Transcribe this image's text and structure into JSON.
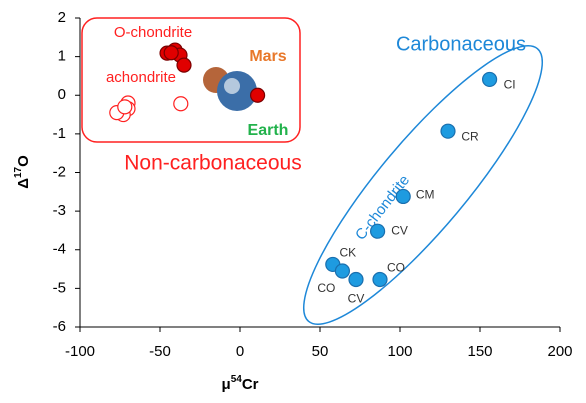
{
  "chart_data": {
    "type": "scatter",
    "xlabel": [
      "μ",
      "54",
      "Cr"
    ],
    "ylabel": [
      "Δ",
      "17",
      "O"
    ],
    "xlim": [
      -100,
      200
    ],
    "ylim": [
      -6,
      2
    ],
    "xticks": [
      -100,
      -50,
      0,
      50,
      100,
      150,
      200
    ],
    "yticks": [
      -6,
      -5,
      -4,
      -3,
      -2,
      -1,
      0,
      1,
      2
    ],
    "series": [
      {
        "color": "#e00000",
        "edge": "#7a0000",
        "filled": true,
        "x": [
          -45.6,
          -40.6,
          -37.5,
          -35,
          -43,
          11
        ],
        "values": [
          1.09,
          1.17,
          1.04,
          0.78,
          1.1,
          0
        ]
      },
      {
        "color": "#ffffff",
        "edge": "#ff2020",
        "filled": false,
        "x": [
          -70,
          -70,
          -73,
          -77,
          -72,
          -37
        ],
        "values": [
          -0.2,
          -0.35,
          -0.5,
          -0.45,
          -0.3,
          -0.22
        ]
      },
      {
        "color": "#1e9be0",
        "edge": "#1a6fae",
        "filled": true,
        "x": [
          156,
          130,
          102,
          86,
          58,
          64,
          72.5,
          87.5
        ],
        "values": [
          0.41,
          -0.93,
          -2.62,
          -3.52,
          -4.38,
          -4.55,
          -4.77,
          -4.77
        ],
        "labels": [
          "CI",
          "CR",
          "CM",
          "CV",
          "CK",
          "CO",
          "CV",
          "CO"
        ]
      }
    ],
    "annotations": [
      {
        "text": "O-chondrite",
        "color": "#ff2020"
      },
      {
        "text": "achondrite",
        "color": "#ff2020"
      },
      {
        "text": "Mars",
        "color": "#e8782a"
      },
      {
        "text": "Earth",
        "color": "#22b24c"
      },
      {
        "text": "Non-carbonaceous",
        "color": "#ff2020"
      },
      {
        "text": "Carbonaceous",
        "color": "#1e88d8"
      },
      {
        "text": "C-chondrite",
        "color": "#1e88d8"
      }
    ]
  }
}
